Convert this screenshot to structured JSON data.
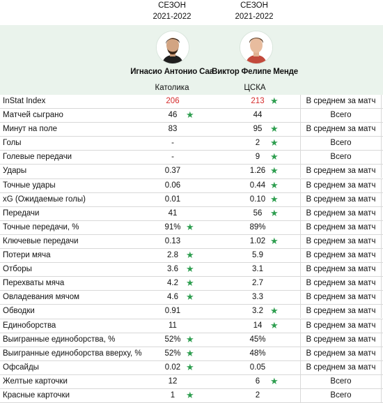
{
  "players": [
    {
      "season_line1": "СЕЗОН",
      "season_line2": "2021-2022",
      "name": "Игнасио Антонио Саа",
      "team": "Католика"
    },
    {
      "season_line1": "СЕЗОН",
      "season_line2": "2021-2022",
      "name": "Виктор Фелипе Менде",
      "team": "ЦСКА"
    }
  ],
  "star_glyph": "★",
  "colors": {
    "star": "#2e9e4f",
    "highlight_red": "#d52b2b",
    "band": "#eaf3ec"
  },
  "rows": [
    {
      "label": "InStat Index",
      "v1": "206",
      "v2": "213",
      "star1": "",
      "star2": "★",
      "basis": "В среднем за матч",
      "red": true
    },
    {
      "label": "Матчей сыграно",
      "v1": "46",
      "v2": "44",
      "star1": "★",
      "star2": "",
      "basis": "Всего"
    },
    {
      "label": "Минут на поле",
      "v1": "83",
      "v2": "95",
      "star1": "",
      "star2": "★",
      "basis": "В среднем за матч"
    },
    {
      "label": "Голы",
      "v1": "-",
      "v2": "2",
      "star1": "",
      "star2": "★",
      "basis": "Всего"
    },
    {
      "label": "Голевые передачи",
      "v1": "-",
      "v2": "9",
      "star1": "",
      "star2": "★",
      "basis": "Всего"
    },
    {
      "label": "Удары",
      "v1": "0.37",
      "v2": "1.26",
      "star1": "",
      "star2": "★",
      "basis": "В среднем за матч"
    },
    {
      "label": "Точные удары",
      "v1": "0.06",
      "v2": "0.44",
      "star1": "",
      "star2": "★",
      "basis": "В среднем за матч"
    },
    {
      "label": "xG (Ожидаемые голы)",
      "v1": "0.01",
      "v2": "0.10",
      "star1": "",
      "star2": "★",
      "basis": "В среднем за матч"
    },
    {
      "label": "Передачи",
      "v1": "41",
      "v2": "56",
      "star1": "",
      "star2": "★",
      "basis": "В среднем за матч"
    },
    {
      "label": "Точные передачи, %",
      "v1": "91%",
      "v2": "89%",
      "star1": "★",
      "star2": "",
      "basis": "В среднем за матч"
    },
    {
      "label": "Ключевые передачи",
      "v1": "0.13",
      "v2": "1.02",
      "star1": "",
      "star2": "★",
      "basis": "В среднем за матч"
    },
    {
      "label": "Потери мяча",
      "v1": "2.8",
      "v2": "5.9",
      "star1": "★",
      "star2": "",
      "basis": "В среднем за матч"
    },
    {
      "label": "Отборы",
      "v1": "3.6",
      "v2": "3.1",
      "star1": "★",
      "star2": "",
      "basis": "В среднем за матч"
    },
    {
      "label": "Перехваты мяча",
      "v1": "4.2",
      "v2": "2.7",
      "star1": "★",
      "star2": "",
      "basis": "В среднем за матч"
    },
    {
      "label": "Овладевания мячом",
      "v1": "4.6",
      "v2": "3.3",
      "star1": "★",
      "star2": "",
      "basis": "В среднем за матч"
    },
    {
      "label": "Обводки",
      "v1": "0.91",
      "v2": "3.2",
      "star1": "",
      "star2": "★",
      "basis": "В среднем за матч"
    },
    {
      "label": "Единоборства",
      "v1": "11",
      "v2": "14",
      "star1": "",
      "star2": "★",
      "basis": "В среднем за матч"
    },
    {
      "label": "Выигранные единоборства, %",
      "v1": "52%",
      "v2": "45%",
      "star1": "★",
      "star2": "",
      "basis": "В среднем за матч"
    },
    {
      "label": "Выигранные единоборства вверху, %",
      "v1": "52%",
      "v2": "48%",
      "star1": "★",
      "star2": "",
      "basis": "В среднем за матч"
    },
    {
      "label": "Офсайды",
      "v1": "0.02",
      "v2": "0.05",
      "star1": "★",
      "star2": "",
      "basis": "В среднем за матч"
    },
    {
      "label": "Желтые карточки",
      "v1": "12",
      "v2": "6",
      "star1": "",
      "star2": "★",
      "basis": "Всего"
    },
    {
      "label": "Красные карточки",
      "v1": "1",
      "v2": "2",
      "star1": "★",
      "star2": "",
      "basis": "Всего"
    }
  ]
}
